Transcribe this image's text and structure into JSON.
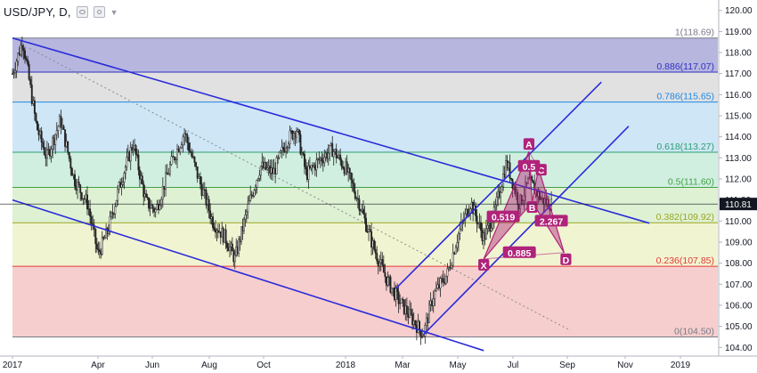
{
  "header": {
    "symbol_label": "USD/JPY, D,",
    "visibility_icon": "eye-icon",
    "settings_icon": "gear-icon",
    "dropdown_icon": "chevron-down-icon"
  },
  "price_label": "110.81",
  "colors": {
    "channel": "#2b2bd9",
    "pattern": "#b0237a",
    "price_line": "#131722"
  },
  "chart_data": {
    "type": "candlestick",
    "symbol": "USD/JPY",
    "timeframe": "D",
    "x_ticks": [
      "2017",
      "Apr",
      "Jun",
      "Aug",
      "Oct",
      "2018",
      "Mar",
      "May",
      "Jul",
      "Sep",
      "Nov",
      "2019"
    ],
    "y_ticks": [
      104.0,
      105.0,
      106.0,
      107.0,
      108.0,
      109.0,
      110.0,
      111.0,
      112.0,
      113.0,
      114.0,
      115.0,
      116.0,
      117.0,
      118.0,
      119.0,
      120.0
    ],
    "y_tick_labels": [
      "104.00",
      "105.00",
      "106.00",
      "107.00",
      "108.00",
      "109.00",
      "110.00",
      "111.00",
      "112.00",
      "113.00",
      "114.00",
      "115.00",
      "116.00",
      "117.00",
      "118.00",
      "119.00",
      "120.00"
    ],
    "ylim": [
      103.8,
      120.2
    ],
    "current_price": 110.81,
    "fibonacci": [
      {
        "ratio": "0",
        "price": 104.5,
        "label": "0(104.50)",
        "color": "#787b86",
        "fill": null
      },
      {
        "ratio": "0.236",
        "price": 107.85,
        "label": "0.236(107.85)",
        "color": "#e53935",
        "fill": "#f5c6c6"
      },
      {
        "ratio": "0.382",
        "price": 109.92,
        "label": "0.382(109.92)",
        "color": "#9aa524",
        "fill": "#eef2c9"
      },
      {
        "ratio": "0.5",
        "price": 111.6,
        "label": "0.5(111.60)",
        "color": "#43a047",
        "fill": "#d8efcb"
      },
      {
        "ratio": "0.618",
        "price": 113.27,
        "label": "0.618(113.27)",
        "color": "#2e9e6e",
        "fill": "#c9ecdb"
      },
      {
        "ratio": "0.786",
        "price": 115.65,
        "label": "0.786(115.65)",
        "color": "#1e88e5",
        "fill": "#c6e2f4"
      },
      {
        "ratio": "0.886",
        "price": 117.07,
        "label": "0.886(117.07)",
        "color": "#3030c0",
        "fill": "#dcdcdc"
      },
      {
        "ratio": "1",
        "price": 118.69,
        "label": "1(118.69)",
        "color": "#787b86",
        "fill": "#a9a9d9"
      }
    ],
    "price_path": [
      [
        2017.0,
        117.0
      ],
      [
        2017.03,
        118.6
      ],
      [
        2017.07,
        114.5
      ],
      [
        2017.1,
        113.0
      ],
      [
        2017.14,
        114.8
      ],
      [
        2017.18,
        112.0
      ],
      [
        2017.22,
        110.8
      ],
      [
        2017.25,
        108.4
      ],
      [
        2017.28,
        109.5
      ],
      [
        2017.32,
        111.8
      ],
      [
        2017.36,
        113.7
      ],
      [
        2017.4,
        110.9
      ],
      [
        2017.43,
        110.5
      ],
      [
        2017.47,
        112.6
      ],
      [
        2017.51,
        114.2
      ],
      [
        2017.55,
        112.0
      ],
      [
        2017.59,
        110.0
      ],
      [
        2017.63,
        109.2
      ],
      [
        2017.66,
        108.2
      ],
      [
        2017.7,
        110.6
      ],
      [
        2017.74,
        112.6
      ],
      [
        2017.78,
        112.3
      ],
      [
        2017.82,
        113.8
      ],
      [
        2017.85,
        114.4
      ],
      [
        2017.88,
        112.2
      ],
      [
        2017.92,
        112.9
      ],
      [
        2017.96,
        113.4
      ],
      [
        2018.0,
        112.5
      ],
      [
        2018.04,
        110.9
      ],
      [
        2018.08,
        108.9
      ],
      [
        2018.12,
        107.3
      ],
      [
        2018.16,
        106.2
      ],
      [
        2018.2,
        105.3
      ],
      [
        2018.23,
        104.6
      ],
      [
        2018.26,
        106.5
      ],
      [
        2018.3,
        107.5
      ],
      [
        2018.33,
        109.3
      ],
      [
        2018.37,
        110.9
      ],
      [
        2018.41,
        109.2
      ],
      [
        2018.44,
        110.2
      ],
      [
        2018.48,
        112.8
      ],
      [
        2018.52,
        110.8
      ],
      [
        2018.55,
        111.9
      ],
      [
        2018.59,
        111.0
      ],
      [
        2018.62,
        110.8
      ]
    ],
    "channels": [
      {
        "name": "descending",
        "upper": [
          [
            2017.0,
            118.69
          ],
          [
            2018.91,
            109.9
          ]
        ],
        "lower": [
          [
            2017.0,
            111.0
          ],
          [
            2018.41,
            103.85
          ]
        ]
      },
      {
        "name": "ascending",
        "lower": [
          [
            2018.23,
            104.6
          ],
          [
            2018.85,
            114.5
          ]
        ],
        "upper": [
          [
            2018.15,
            106.8
          ],
          [
            2018.77,
            116.6
          ]
        ]
      }
    ],
    "harmonic_pattern": {
      "points": [
        {
          "label": "X",
          "x": 2018.41,
          "y": 108.2
        },
        {
          "label": "A",
          "x": 2018.55,
          "y": 113.3
        },
        {
          "label": "B",
          "x": 2018.56,
          "y": 110.9
        },
        {
          "label": "C",
          "x": 2018.58,
          "y": 112.5
        },
        {
          "label": "D",
          "x": 2018.66,
          "y": 108.5
        }
      ],
      "ratios": [
        {
          "label": "0.519",
          "x": 2018.47,
          "y": 110.2
        },
        {
          "label": "0.5",
          "x": 2018.55,
          "y": 112.6
        },
        {
          "label": "2.267",
          "x": 2018.62,
          "y": 110.0
        },
        {
          "label": "0.885",
          "x": 2018.52,
          "y": 108.5
        }
      ]
    }
  }
}
